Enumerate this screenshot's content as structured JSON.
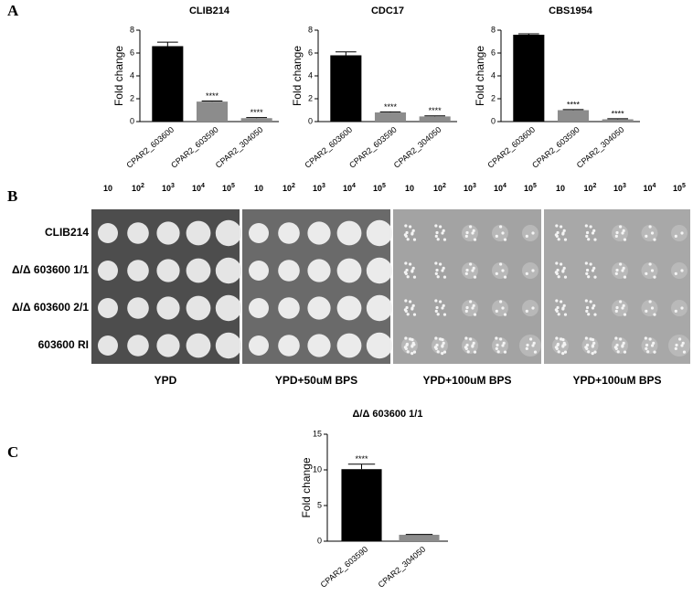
{
  "panel_labels": [
    "A",
    "B",
    "C"
  ],
  "chart_data": [
    {
      "type": "bar",
      "title": "CLIB214",
      "y_label": "Fold change",
      "categories": [
        "CPAR2_603600",
        "CPAR2_603590",
        "CPAR2_304050"
      ],
      "values": [
        6.6,
        1.75,
        0.3
      ],
      "errors": [
        0.35,
        0.05,
        0.05
      ],
      "colors": [
        "#000000",
        "#8c8c8c",
        "#8c8c8c"
      ],
      "annotations": [
        null,
        "****",
        "****"
      ],
      "ylim": [
        0,
        8
      ],
      "yticks": [
        0,
        2,
        4,
        6,
        8
      ]
    },
    {
      "type": "bar",
      "title": "CDC17",
      "y_label": "Fold change",
      "categories": [
        "CPAR2_603600",
        "CPAR2_603590",
        "CPAR2_304050"
      ],
      "values": [
        5.8,
        0.8,
        0.45
      ],
      "errors": [
        0.3,
        0.05,
        0.05
      ],
      "colors": [
        "#000000",
        "#8c8c8c",
        "#8c8c8c"
      ],
      "annotations": [
        null,
        "****",
        "****"
      ],
      "ylim": [
        0,
        8
      ],
      "yticks": [
        0,
        2,
        4,
        6,
        8
      ]
    },
    {
      "type": "bar",
      "title": "CBS1954",
      "y_label": "Fold change",
      "categories": [
        "CPAR2_603600",
        "CPAR2_603590",
        "CPAR2_304050"
      ],
      "values": [
        7.6,
        1.0,
        0.2
      ],
      "errors": [
        0.08,
        0.05,
        0.05
      ],
      "colors": [
        "#000000",
        "#8c8c8c",
        "#8c8c8c"
      ],
      "annotations": [
        null,
        "****",
        "****"
      ],
      "ylim": [
        0,
        8
      ],
      "yticks": [
        0,
        2,
        4,
        6,
        8
      ]
    },
    {
      "type": "bar",
      "title": "Δ/Δ 603600 1/1",
      "y_label": "Fold change",
      "categories": [
        "CPAR2_603590",
        "CPAR2_304050"
      ],
      "values": [
        10.1,
        0.9
      ],
      "errors": [
        0.7,
        0.05
      ],
      "colors": [
        "#000000",
        "#8c8c8c"
      ],
      "annotations": [
        "****",
        null
      ],
      "ylim": [
        0,
        15
      ],
      "yticks": [
        0,
        5,
        10,
        15
      ]
    }
  ],
  "spot_panel": {
    "dilutions": [
      {
        "base": "10"
      },
      {
        "base": "10",
        "exp": "2"
      },
      {
        "base": "10",
        "exp": "3"
      },
      {
        "base": "10",
        "exp": "4"
      },
      {
        "base": "10",
        "exp": "5"
      }
    ],
    "strains": [
      "CLIB214",
      "Δ/Δ 603600 1/1",
      "Δ/Δ 603600 2/1",
      "603600 RI"
    ],
    "conditions": [
      "YPD",
      "YPD+50uM BPS",
      "YPD+100uM BPS",
      "YPD+100uM BPS"
    ]
  }
}
